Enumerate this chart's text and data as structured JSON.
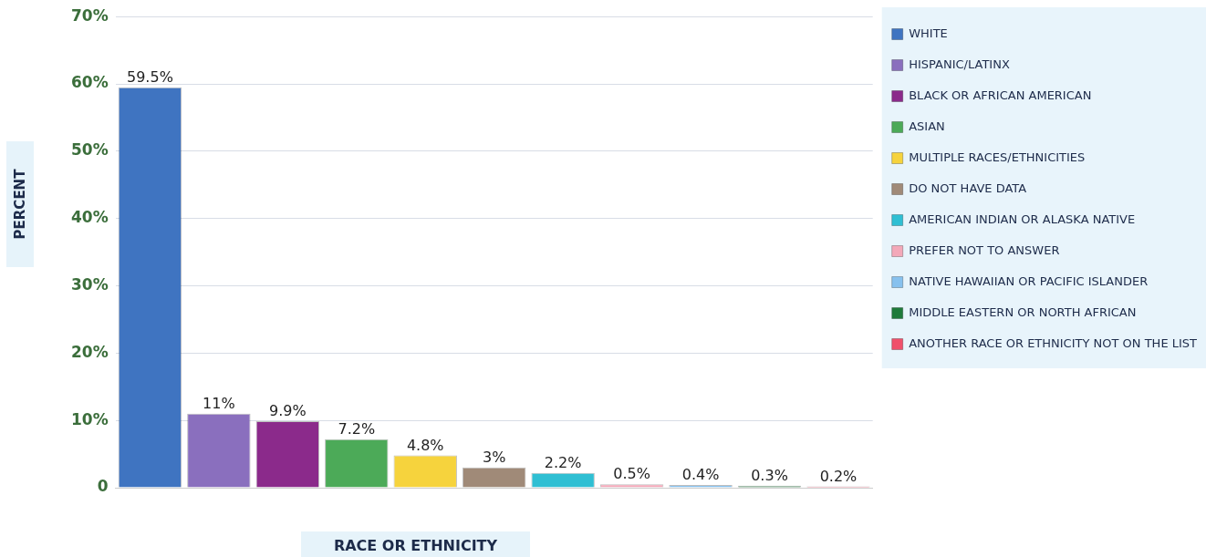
{
  "chart_data": {
    "type": "bar",
    "xlabel": "RACE OR ETHNICITY",
    "ylabel": "PERCENT",
    "categories": [
      null
    ],
    "series": [
      {
        "name": "WHITE",
        "color": "#3f74c1",
        "values": [
          59.5
        ],
        "value_labels": [
          "59.5%"
        ]
      },
      {
        "name": "HISPANIC/LATINX",
        "color": "#8a6fbe",
        "values": [
          11
        ],
        "value_labels": [
          "11%"
        ]
      },
      {
        "name": "BLACK OR AFRICAN AMERICAN",
        "color": "#8b2a8b",
        "values": [
          9.9
        ],
        "value_labels": [
          "9.9%"
        ]
      },
      {
        "name": "ASIAN",
        "color": "#4caa58",
        "values": [
          7.2
        ],
        "value_labels": [
          "7.2%"
        ]
      },
      {
        "name": "MULTIPLE RACES/ETHNICITIES",
        "color": "#f6d33d",
        "values": [
          4.8
        ],
        "value_labels": [
          "4.8%"
        ]
      },
      {
        "name": "DO NOT HAVE DATA",
        "color": "#a08a78",
        "values": [
          3
        ],
        "value_labels": [
          "3%"
        ]
      },
      {
        "name": "AMERICAN INDIAN OR ALASKA NATIVE",
        "color": "#2fbfd3",
        "values": [
          2.2
        ],
        "value_labels": [
          "2.2%"
        ]
      },
      {
        "name": "PREFER NOT TO ANSWER",
        "color": "#f3a8b9",
        "values": [
          0.5
        ],
        "value_labels": [
          "0.5%"
        ]
      },
      {
        "name": "NATIVE HAWAIIAN OR PACIFIC ISLANDER",
        "color": "#87c1ee",
        "values": [
          0.4
        ],
        "value_labels": [
          "0.4%"
        ]
      },
      {
        "name": "MIDDLE EASTERN OR NORTH AFRICAN",
        "color": "#1f7a3a",
        "values": [
          0.3
        ],
        "value_labels": [
          "0.3%"
        ]
      },
      {
        "name": "ANOTHER RACE OR ETHNICITY NOT ON THE LIST",
        "color": "#f0506b",
        "values": [
          0.2
        ],
        "value_labels": [
          "0.2%"
        ]
      }
    ],
    "ylim": [
      0,
      70
    ],
    "yticks": [
      {
        "value": 0,
        "label": "0"
      },
      {
        "value": 10,
        "label": "10%"
      },
      {
        "value": 20,
        "label": "20%"
      },
      {
        "value": 30,
        "label": "30%"
      },
      {
        "value": 40,
        "label": "40%"
      },
      {
        "value": 50,
        "label": "50%"
      },
      {
        "value": 60,
        "label": "60%"
      },
      {
        "value": 70,
        "label": "70%"
      }
    ],
    "grid": "y",
    "legend": "right",
    "tick_labels": "y"
  }
}
